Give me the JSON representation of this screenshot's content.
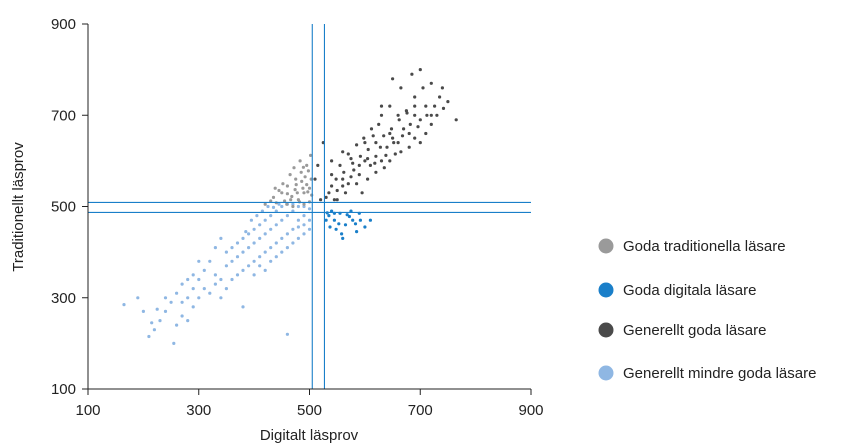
{
  "chart_data": {
    "type": "scatter",
    "title": "",
    "xlabel": "Digitalt läsprov",
    "ylabel": "Traditionellt läsprov",
    "xlim": [
      100,
      900
    ],
    "ylim": [
      100,
      900
    ],
    "xticks": [
      "100",
      "300",
      "500",
      "700",
      "900"
    ],
    "yticks": [
      "100",
      "300",
      "500",
      "700",
      "900"
    ],
    "reference_lines": {
      "vertical": [
        505,
        527
      ],
      "horizontal": [
        487,
        509
      ]
    },
    "legend_position": "right",
    "series": [
      {
        "name": "Goda traditionella läsare",
        "color": "#9a9a9a",
        "points": [
          [
            420,
            505
          ],
          [
            435,
            520
          ],
          [
            450,
            530
          ],
          [
            460,
            545
          ],
          [
            470,
            500
          ],
          [
            475,
            560
          ],
          [
            480,
            515
          ],
          [
            485,
            575
          ],
          [
            490,
            530
          ],
          [
            495,
            590
          ],
          [
            500,
            510
          ],
          [
            495,
            548
          ],
          [
            488,
            540
          ],
          [
            478,
            530
          ],
          [
            468,
            522
          ],
          [
            455,
            512
          ],
          [
            445,
            535
          ],
          [
            440,
            508
          ],
          [
            465,
            570
          ],
          [
            472,
            585
          ],
          [
            483,
            600
          ],
          [
            492,
            565
          ],
          [
            498,
            578
          ],
          [
            502,
            612
          ],
          [
            486,
            555
          ],
          [
            476,
            548
          ],
          [
            460,
            528
          ],
          [
            452,
            550
          ],
          [
            430,
            512
          ],
          [
            438,
            540
          ],
          [
            500,
            540
          ],
          [
            490,
            505
          ],
          [
            504,
            525
          ],
          [
            482,
            510
          ],
          [
            466,
            515
          ],
          [
            497,
            532
          ],
          [
            503,
            560
          ],
          [
            489,
            586
          ],
          [
            474,
            537
          ],
          [
            459,
            505
          ]
        ]
      },
      {
        "name": "Goda digitala läsare",
        "color": "#1a7fc9",
        "points": [
          [
            535,
            480
          ],
          [
            545,
            470
          ],
          [
            555,
            485
          ],
          [
            565,
            460
          ],
          [
            572,
            478
          ],
          [
            585,
            445
          ],
          [
            592,
            470
          ],
          [
            600,
            455
          ],
          [
            560,
            430
          ],
          [
            548,
            450
          ],
          [
            540,
            490
          ],
          [
            553,
            462
          ],
          [
            568,
            482
          ],
          [
            578,
            470
          ],
          [
            530,
            470
          ],
          [
            537,
            455
          ],
          [
            590,
            485
          ],
          [
            610,
            470
          ],
          [
            575,
            490
          ],
          [
            545,
            485
          ],
          [
            558,
            440
          ],
          [
            532,
            486
          ],
          [
            583,
            462
          ]
        ]
      },
      {
        "name": "Generellt goda läsare",
        "color": "#4a4a4a",
        "points": [
          [
            530,
            520
          ],
          [
            540,
            545
          ],
          [
            550,
            535
          ],
          [
            560,
            560
          ],
          [
            570,
            550
          ],
          [
            580,
            580
          ],
          [
            590,
            570
          ],
          [
            600,
            600
          ],
          [
            610,
            590
          ],
          [
            620,
            610
          ],
          [
            630,
            600
          ],
          [
            640,
            630
          ],
          [
            650,
            650
          ],
          [
            660,
            640
          ],
          [
            670,
            670
          ],
          [
            680,
            660
          ],
          [
            690,
            700
          ],
          [
            700,
            690
          ],
          [
            710,
            720
          ],
          [
            720,
            700
          ],
          [
            735,
            740
          ],
          [
            750,
            730
          ],
          [
            765,
            690
          ],
          [
            700,
            800
          ],
          [
            650,
            780
          ],
          [
            540,
            600
          ],
          [
            560,
            620
          ],
          [
            575,
            605
          ],
          [
            600,
            640
          ],
          [
            615,
            655
          ],
          [
            625,
            680
          ],
          [
            645,
            660
          ],
          [
            660,
            700
          ],
          [
            675,
            710
          ],
          [
            690,
            740
          ],
          [
            705,
            760
          ],
          [
            720,
            770
          ],
          [
            550,
            515
          ],
          [
            565,
            530
          ],
          [
            585,
            550
          ],
          [
            595,
            530
          ],
          [
            605,
            560
          ],
          [
            620,
            575
          ],
          [
            635,
            585
          ],
          [
            645,
            600
          ],
          [
            655,
            615
          ],
          [
            665,
            620
          ],
          [
            680,
            630
          ],
          [
            690,
            650
          ],
          [
            700,
            640
          ],
          [
            710,
            660
          ],
          [
            720,
            680
          ],
          [
            730,
            700
          ],
          [
            540,
            570
          ],
          [
            555,
            590
          ],
          [
            570,
            615
          ],
          [
            585,
            635
          ],
          [
            598,
            650
          ],
          [
            612,
            670
          ],
          [
            630,
            700
          ],
          [
            645,
            720
          ],
          [
            535,
            530
          ],
          [
            548,
            560
          ],
          [
            562,
            575
          ],
          [
            578,
            595
          ],
          [
            592,
            610
          ],
          [
            606,
            625
          ],
          [
            620,
            640
          ],
          [
            634,
            655
          ],
          [
            648,
            670
          ],
          [
            662,
            690
          ],
          [
            676,
            705
          ],
          [
            690,
            720
          ],
          [
            520,
            515
          ],
          [
            525,
            640
          ],
          [
            515,
            590
          ],
          [
            510,
            560
          ],
          [
            665,
            760
          ],
          [
            685,
            790
          ],
          [
            740,
            760
          ],
          [
            630,
            720
          ],
          [
            545,
            515
          ],
          [
            560,
            545
          ],
          [
            575,
            565
          ],
          [
            590,
            590
          ],
          [
            605,
            605
          ],
          [
            618,
            595
          ],
          [
            628,
            630
          ],
          [
            638,
            612
          ],
          [
            652,
            640
          ],
          [
            668,
            655
          ],
          [
            682,
            680
          ],
          [
            696,
            675
          ],
          [
            712,
            700
          ],
          [
            726,
            720
          ],
          [
            742,
            715
          ]
        ]
      },
      {
        "name": "Generellt mindre goda läsare",
        "color": "#8fb7e3",
        "points": [
          [
            165,
            285
          ],
          [
            210,
            215
          ],
          [
            225,
            275
          ],
          [
            240,
            300
          ],
          [
            255,
            200
          ],
          [
            260,
            240
          ],
          [
            270,
            260
          ],
          [
            280,
            250
          ],
          [
            290,
            280
          ],
          [
            300,
            300
          ],
          [
            310,
            320
          ],
          [
            320,
            310
          ],
          [
            330,
            350
          ],
          [
            340,
            340
          ],
          [
            350,
            370
          ],
          [
            360,
            380
          ],
          [
            370,
            390
          ],
          [
            380,
            400
          ],
          [
            390,
            410
          ],
          [
            400,
            420
          ],
          [
            410,
            430
          ],
          [
            420,
            440
          ],
          [
            430,
            450
          ],
          [
            440,
            460
          ],
          [
            450,
            470
          ],
          [
            460,
            480
          ],
          [
            470,
            490
          ],
          [
            480,
            470
          ],
          [
            490,
            480
          ],
          [
            500,
            495
          ],
          [
            320,
            380
          ],
          [
            330,
            330
          ],
          [
            340,
            300
          ],
          [
            350,
            320
          ],
          [
            360,
            340
          ],
          [
            370,
            350
          ],
          [
            380,
            360
          ],
          [
            390,
            370
          ],
          [
            400,
            380
          ],
          [
            410,
            390
          ],
          [
            420,
            400
          ],
          [
            430,
            410
          ],
          [
            440,
            420
          ],
          [
            450,
            430
          ],
          [
            460,
            440
          ],
          [
            470,
            450
          ],
          [
            480,
            455
          ],
          [
            490,
            460
          ],
          [
            500,
            470
          ],
          [
            300,
            340
          ],
          [
            290,
            320
          ],
          [
            280,
            300
          ],
          [
            270,
            330
          ],
          [
            260,
            310
          ],
          [
            250,
            290
          ],
          [
            240,
            270
          ],
          [
            230,
            250
          ],
          [
            220,
            230
          ],
          [
            350,
            400
          ],
          [
            360,
            410
          ],
          [
            370,
            420
          ],
          [
            380,
            430
          ],
          [
            390,
            440
          ],
          [
            400,
            450
          ],
          [
            410,
            460
          ],
          [
            420,
            470
          ],
          [
            430,
            480
          ],
          [
            440,
            490
          ],
          [
            450,
            500
          ],
          [
            460,
            505
          ],
          [
            470,
            505
          ],
          [
            480,
            500
          ],
          [
            490,
            500
          ],
          [
            385,
            445
          ],
          [
            395,
            470
          ],
          [
            405,
            480
          ],
          [
            415,
            490
          ],
          [
            425,
            500
          ],
          [
            435,
            498
          ],
          [
            445,
            505
          ],
          [
            330,
            410
          ],
          [
            340,
            430
          ],
          [
            310,
            360
          ],
          [
            300,
            380
          ],
          [
            290,
            350
          ],
          [
            280,
            340
          ],
          [
            270,
            290
          ],
          [
            400,
            350
          ],
          [
            410,
            370
          ],
          [
            420,
            360
          ],
          [
            430,
            380
          ],
          [
            440,
            390
          ],
          [
            450,
            400
          ],
          [
            460,
            410
          ],
          [
            470,
            420
          ],
          [
            480,
            430
          ],
          [
            490,
            440
          ],
          [
            500,
            450
          ],
          [
            460,
            220
          ],
          [
            380,
            280
          ],
          [
            190,
            300
          ],
          [
            200,
            270
          ],
          [
            215,
            245
          ]
        ]
      }
    ]
  }
}
